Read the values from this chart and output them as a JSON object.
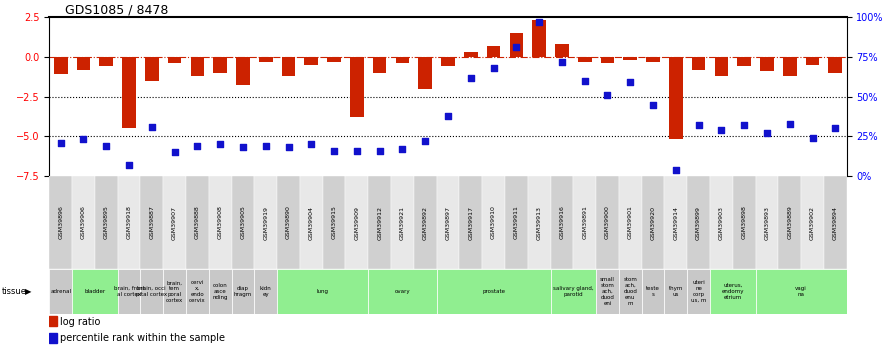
{
  "title": "GDS1085 / 8478",
  "samples": [
    "GSM39896",
    "GSM39906",
    "GSM39895",
    "GSM39918",
    "GSM39887",
    "GSM39907",
    "GSM39888",
    "GSM39908",
    "GSM39905",
    "GSM39919",
    "GSM39890",
    "GSM39904",
    "GSM39915",
    "GSM39909",
    "GSM39912",
    "GSM39921",
    "GSM39892",
    "GSM39897",
    "GSM39917",
    "GSM39910",
    "GSM39911",
    "GSM39913",
    "GSM39916",
    "GSM39891",
    "GSM39900",
    "GSM39901",
    "GSM39920",
    "GSM39914",
    "GSM39899",
    "GSM39903",
    "GSM39898",
    "GSM39893",
    "GSM39889",
    "GSM39902",
    "GSM39894"
  ],
  "log_ratio": [
    -1.1,
    -0.8,
    -0.6,
    -4.5,
    -1.5,
    -0.4,
    -1.2,
    -1.0,
    -1.8,
    -0.3,
    -1.2,
    -0.5,
    -0.3,
    -3.8,
    -1.0,
    -0.4,
    -2.0,
    -0.6,
    0.3,
    0.7,
    1.5,
    2.3,
    0.8,
    -0.3,
    -0.4,
    -0.2,
    -0.3,
    -5.2,
    -0.8,
    -1.2,
    -0.6,
    -0.9,
    -1.2,
    -0.5,
    -1.0
  ],
  "percentile": [
    21,
    23,
    19,
    7,
    31,
    15,
    19,
    20,
    18,
    19,
    18,
    20,
    16,
    16,
    16,
    17,
    22,
    38,
    62,
    68,
    81,
    97,
    72,
    60,
    51,
    59,
    45,
    4,
    32,
    29,
    32,
    27,
    33,
    24,
    30
  ],
  "tissues": [
    {
      "label": "adrenal",
      "start": 0,
      "end": 1,
      "color": "#c8c8c8"
    },
    {
      "label": "bladder",
      "start": 1,
      "end": 3,
      "color": "#90ee90"
    },
    {
      "label": "brain, front\nal cortex",
      "start": 3,
      "end": 4,
      "color": "#c8c8c8"
    },
    {
      "label": "brain, occi\npital cortex",
      "start": 4,
      "end": 5,
      "color": "#c8c8c8"
    },
    {
      "label": "brain,\ntem\nporal\ncortex",
      "start": 5,
      "end": 6,
      "color": "#c8c8c8"
    },
    {
      "label": "cervi\nx,\nendo\ncervix",
      "start": 6,
      "end": 7,
      "color": "#c8c8c8"
    },
    {
      "label": "colon\nasce\nnding",
      "start": 7,
      "end": 8,
      "color": "#c8c8c8"
    },
    {
      "label": "diap\nhragm",
      "start": 8,
      "end": 9,
      "color": "#c8c8c8"
    },
    {
      "label": "kidn\ney",
      "start": 9,
      "end": 10,
      "color": "#c8c8c8"
    },
    {
      "label": "lung",
      "start": 10,
      "end": 14,
      "color": "#90ee90"
    },
    {
      "label": "ovary",
      "start": 14,
      "end": 17,
      "color": "#90ee90"
    },
    {
      "label": "prostate",
      "start": 17,
      "end": 22,
      "color": "#90ee90"
    },
    {
      "label": "salivary gland,\nparotid",
      "start": 22,
      "end": 24,
      "color": "#90ee90"
    },
    {
      "label": "small\nstom\nach,\nduod\neni",
      "start": 24,
      "end": 25,
      "color": "#c8c8c8"
    },
    {
      "label": "stom\nach,\nduod\nenu\nm",
      "start": 25,
      "end": 26,
      "color": "#c8c8c8"
    },
    {
      "label": "teste\ns",
      "start": 26,
      "end": 27,
      "color": "#c8c8c8"
    },
    {
      "label": "thym\nus",
      "start": 27,
      "end": 28,
      "color": "#c8c8c8"
    },
    {
      "label": "uteri\nne\ncorp\nus, m",
      "start": 28,
      "end": 29,
      "color": "#c8c8c8"
    },
    {
      "label": "uterus,\nendomy\netrium",
      "start": 29,
      "end": 31,
      "color": "#90ee90"
    },
    {
      "label": "vagi\nna",
      "start": 31,
      "end": 35,
      "color": "#90ee90"
    }
  ],
  "ylim_left": [
    -7.5,
    2.5
  ],
  "ylim_right": [
    0,
    100
  ],
  "yticks_left": [
    2.5,
    0.0,
    -2.5,
    -5.0,
    -7.5
  ],
  "yticks_right": [
    100,
    75,
    50,
    25,
    0
  ],
  "bar_color": "#cc2200",
  "dot_color": "#1111cc",
  "hline_y0_color": "#cc2200",
  "hline_dotted_color": "black",
  "bg_color": "white",
  "legend_log": "log ratio",
  "legend_pct": "percentile rank within the sample"
}
